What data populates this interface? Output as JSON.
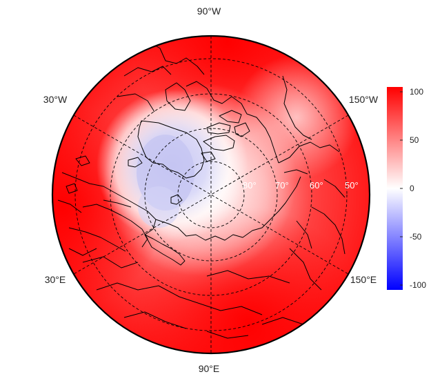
{
  "map": {
    "projection": "polar stereographic (north pole)",
    "field": "diverging anomaly field, negative over Greenland / North Atlantic, strongly positive over Eurasia and North America",
    "longitude_labels": {
      "top": "90°W",
      "upper_left": "30°W",
      "upper_right": "150°W",
      "lower_left": "30°E",
      "lower_right": "150°E",
      "bottom": "90°E"
    },
    "latitude_labels": [
      "80°",
      "70°",
      "60°",
      "50°"
    ],
    "colors": {
      "low": "#0000ff",
      "mid": "#ffffff",
      "high": "#ff0000",
      "coast": "#000000",
      "grid": "#000000"
    }
  },
  "colorbar": {
    "min": -105,
    "max": 105,
    "ticks": [
      "100",
      "50",
      "0",
      "-50",
      "-100"
    ],
    "tick_values": [
      100,
      50,
      0,
      -50,
      -100
    ]
  }
}
